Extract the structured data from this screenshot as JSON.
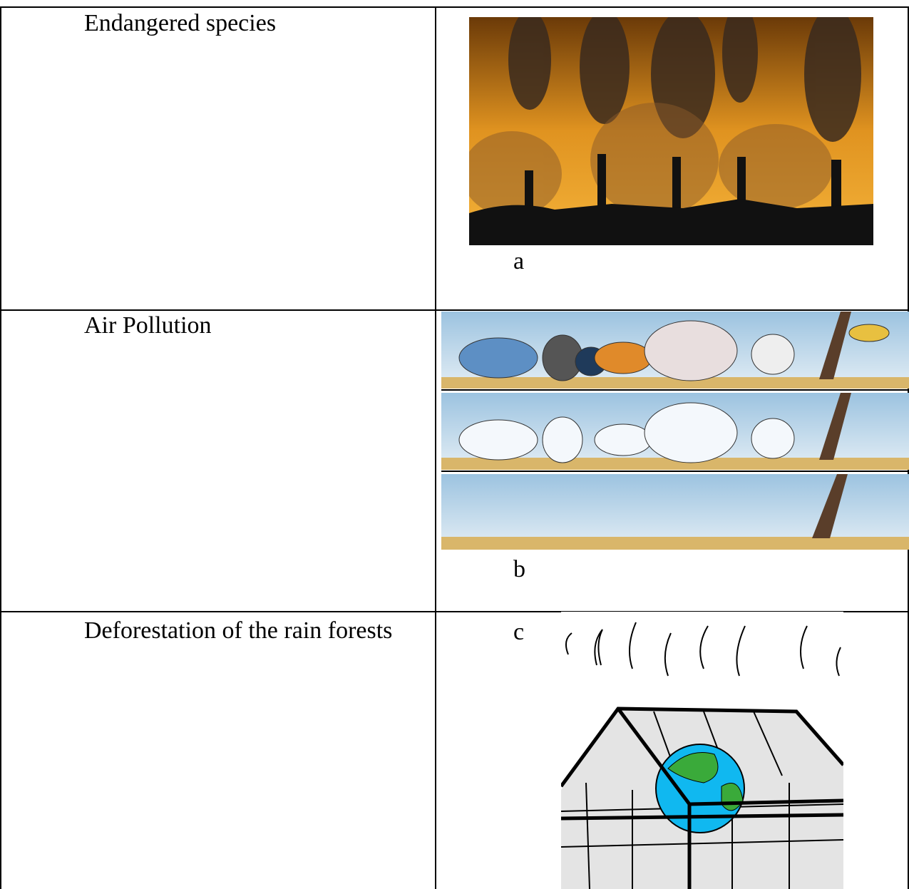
{
  "table": {
    "rows": [
      [
        "Endangered species",
        "a"
      ],
      [
        "Air Pollution",
        "b"
      ],
      [
        "Deforestation of the rain forests",
        "c"
      ]
    ]
  }
}
